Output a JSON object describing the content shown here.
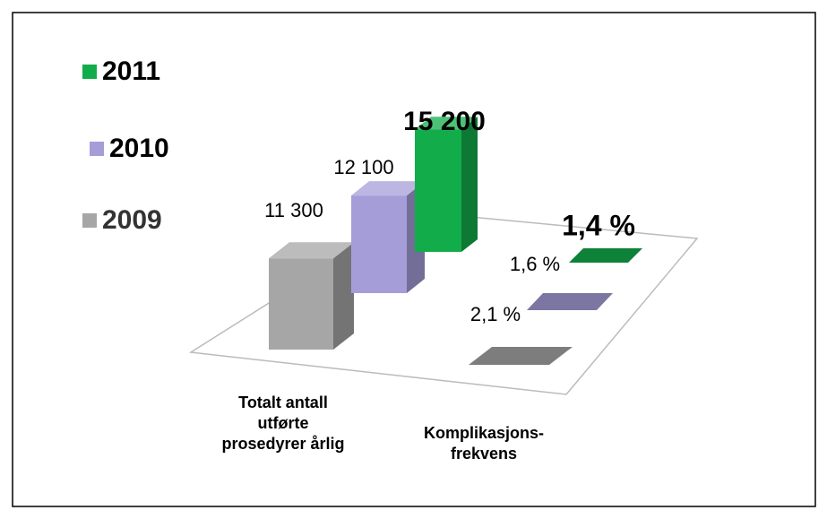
{
  "chart_data": {
    "type": "bar3d",
    "categories": [
      "Totalt antall utførte prosedyrer årlig",
      "Komplikasjons-frekvens"
    ],
    "series": [
      {
        "name": "2009",
        "color": "#a6a6a6",
        "values": [
          11300,
          2.1
        ],
        "value_labels": [
          "11 300",
          "2,1 %"
        ]
      },
      {
        "name": "2010",
        "color": "#a59dd8",
        "values": [
          12100,
          1.6
        ],
        "value_labels": [
          "12 100",
          "1,6 %"
        ]
      },
      {
        "name": "2011",
        "color": "#12ad4a",
        "values": [
          15200,
          1.4
        ],
        "value_labels": [
          "15 200",
          "1,4 %"
        ]
      }
    ],
    "legend": "left"
  }
}
